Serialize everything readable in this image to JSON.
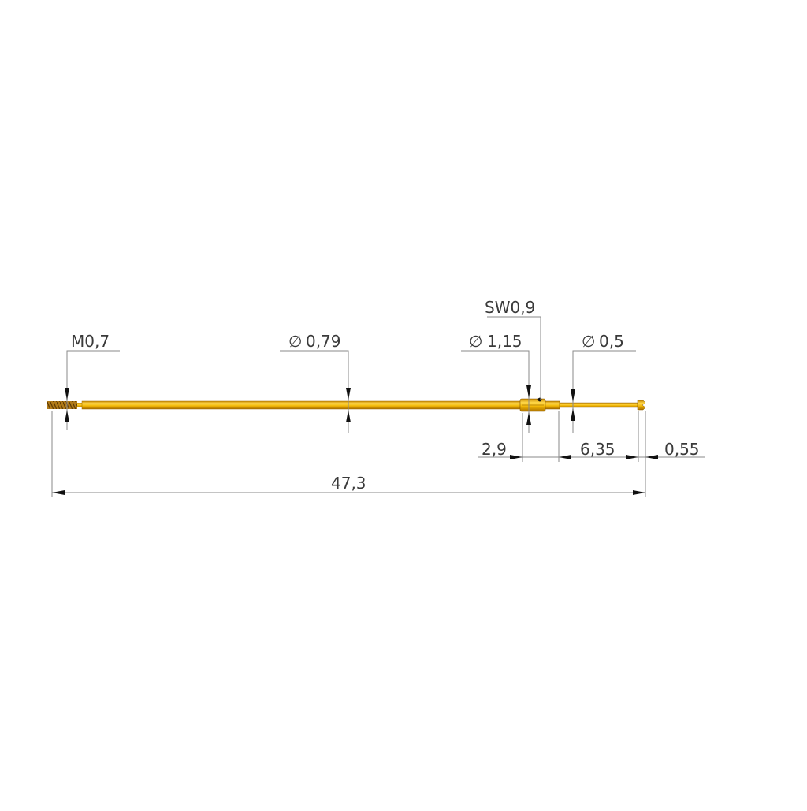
{
  "labels": {
    "thread": "M0,7",
    "barrel_diameter": "0,79",
    "wrench_size": "SW0,9",
    "collar_diameter": "1,15",
    "plunger_diameter": "0,5",
    "collar_length": "2,9",
    "plunger_length": "6,35",
    "tip_length": "0,55",
    "total_length": "47,3"
  },
  "diameter_symbol": "∅",
  "colors": {
    "gold": "#f2b705",
    "gold_dark": "#b07a00",
    "thread": "#9a6a10",
    "dimension_line": "#8a8a8a"
  }
}
